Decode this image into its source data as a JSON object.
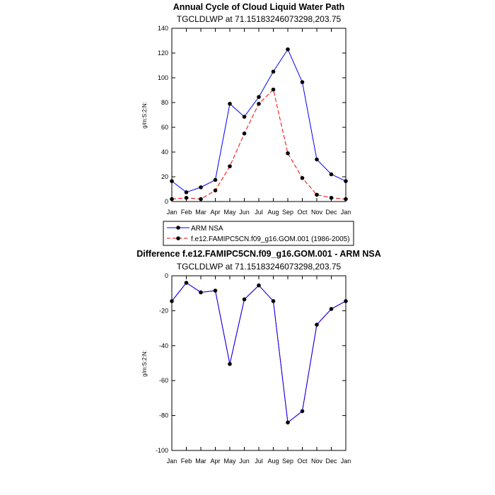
{
  "chart_data": [
    {
      "type": "line",
      "title": "Annual Cycle of Cloud Liquid Water Path",
      "subtitle": "TGCLDLWP at 71.15183246073298,203.75",
      "ylabel": "g/m:S:2:N:",
      "categories": [
        "Jan",
        "Feb",
        "Mar",
        "Apr",
        "May",
        "Jun",
        "Jul",
        "Aug",
        "Sep",
        "Oct",
        "Nov",
        "Dec",
        "Jan"
      ],
      "ylim": [
        0,
        140
      ],
      "yticks": [
        0,
        20,
        40,
        60,
        80,
        100,
        120,
        140
      ],
      "legend_position": "bottom",
      "series": [
        {
          "name": "ARM NSA",
          "color": "#0000ff",
          "dashed": false,
          "values": [
            16.5,
            7.5,
            11.5,
            17.5,
            79,
            68.5,
            84.5,
            105,
            123,
            96.5,
            34,
            22,
            16.5
          ]
        },
        {
          "name": "f.e12.FAMIPC5CN.f09_g16.GOM.001 (1986-2005)",
          "color": "#ff0000",
          "dashed": true,
          "values": [
            2,
            3,
            2,
            9,
            28.5,
            55,
            79,
            90.5,
            39,
            19,
            5.5,
            3,
            2
          ]
        }
      ]
    },
    {
      "type": "line",
      "title": "Difference f.e12.FAMIPC5CN.f09_g16.GOM.001 - ARM NSA",
      "subtitle": "TGCLDLWP at 71.15183246073298,203.75",
      "ylabel": "g/m:S:2:N:",
      "categories": [
        "Jan",
        "Feb",
        "Mar",
        "Apr",
        "May",
        "Jun",
        "Jul",
        "Aug",
        "Sep",
        "Oct",
        "Nov",
        "Dec",
        "Jan"
      ],
      "ylim": [
        -100,
        0
      ],
      "yticks": [
        -100,
        -80,
        -60,
        -40,
        -20,
        0
      ],
      "series": [
        {
          "color": "#0000ff",
          "overlay_color": "#ff0000",
          "values": [
            -14.5,
            -4,
            -9.5,
            -8.5,
            -50.5,
            -13.5,
            -5.5,
            -14.5,
            -84,
            -77.5,
            -28,
            -19,
            -14.5
          ]
        }
      ]
    }
  ]
}
